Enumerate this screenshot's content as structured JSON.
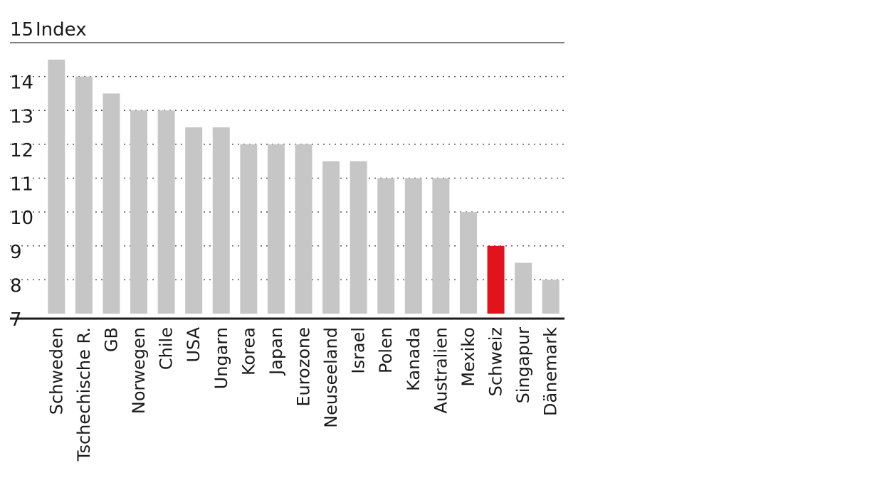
{
  "chart_data": {
    "type": "bar",
    "unit_label": "Index",
    "categories": [
      "Schweden",
      "Tschechische R.",
      "GB",
      "Norwegen",
      "Chile",
      "USA",
      "Ungarn",
      "Korea",
      "Japan",
      "Eurozone",
      "Neuseeland",
      "Israel",
      "Polen",
      "Kanada",
      "Australien",
      "Mexiko",
      "Schweiz",
      "Singapur",
      "Dänemark"
    ],
    "values": [
      14.5,
      14.0,
      13.5,
      13.0,
      13.0,
      12.5,
      12.5,
      12.0,
      12.0,
      12.0,
      11.5,
      11.5,
      11.0,
      11.0,
      11.0,
      10.0,
      9.0,
      8.5,
      8.0
    ],
    "highlight": "Schweiz",
    "ylim": [
      7,
      15
    ],
    "yticks": [
      15,
      14,
      13,
      12,
      11,
      10,
      9,
      8,
      7
    ],
    "grid": true,
    "colors": {
      "bar": "#c6c6c6",
      "highlight": "#e3131b",
      "grid": "#555555",
      "axis": "#1a1a1a"
    }
  }
}
